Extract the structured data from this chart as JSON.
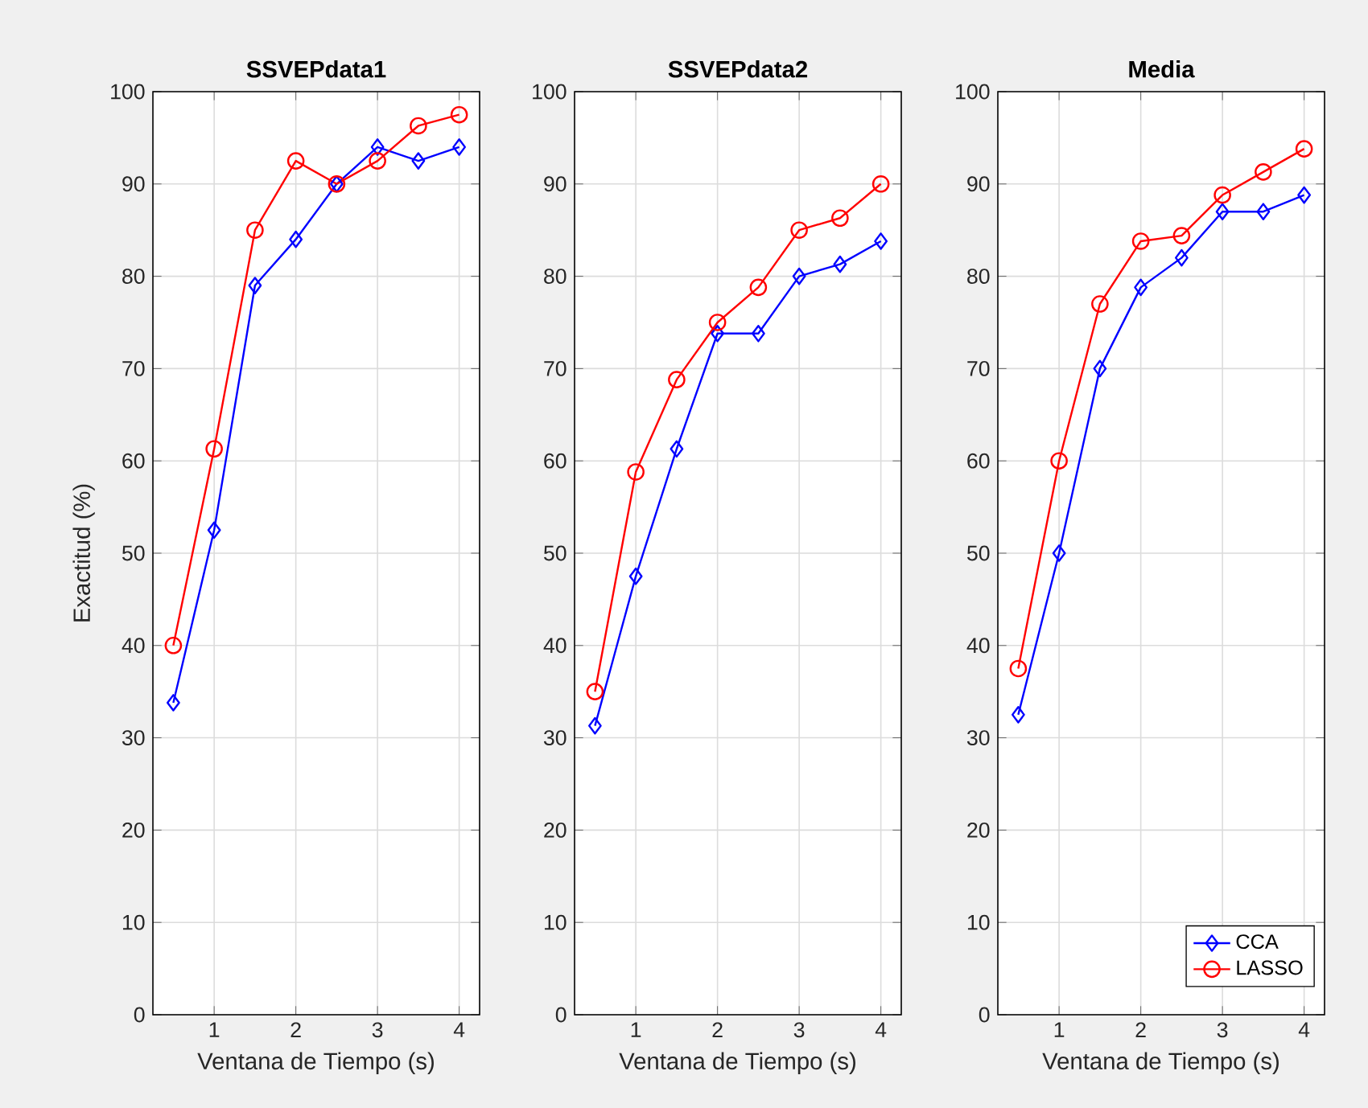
{
  "chart_data": [
    {
      "type": "line",
      "title": "SSVEPdata1",
      "xlabel": "Ventana de Tiempo (s)",
      "ylabel": "Exactitud (%)",
      "x": [
        0.5,
        1,
        1.5,
        2,
        2.5,
        3,
        3.5,
        4
      ],
      "xlim": [
        0.25,
        4.25
      ],
      "ylim": [
        0,
        100
      ],
      "xticks": [
        1,
        2,
        3,
        4
      ],
      "yticks": [
        0,
        10,
        20,
        30,
        40,
        50,
        60,
        70,
        80,
        90,
        100
      ],
      "grid": true,
      "line_style": "solid",
      "series": [
        {
          "color": "#0000ff",
          "marker": "diamond",
          "values": [
            33.8,
            52.5,
            79,
            84,
            90,
            94,
            92.5,
            94
          ]
        },
        {
          "color": "#ff0000",
          "marker": "circle",
          "values": [
            40,
            61.3,
            85,
            92.5,
            90,
            92.5,
            96.3,
            97.5
          ]
        }
      ]
    },
    {
      "type": "line",
      "title": "SSVEPdata2",
      "xlabel": "Ventana de Tiempo (s)",
      "x": [
        0.5,
        1,
        1.5,
        2,
        2.5,
        3,
        3.5,
        4
      ],
      "xlim": [
        0.25,
        4.25
      ],
      "ylim": [
        0,
        100
      ],
      "xticks": [
        1,
        2,
        3,
        4
      ],
      "yticks": [
        0,
        10,
        20,
        30,
        40,
        50,
        60,
        70,
        80,
        90,
        100
      ],
      "grid": true,
      "line_style": "solid",
      "series": [
        {
          "color": "#0000ff",
          "marker": "diamond",
          "values": [
            31.3,
            47.5,
            61.3,
            73.8,
            73.8,
            80,
            81.3,
            83.8
          ]
        },
        {
          "color": "#ff0000",
          "marker": "circle",
          "values": [
            35,
            58.8,
            68.8,
            75,
            78.8,
            85,
            86.3,
            90
          ]
        }
      ]
    },
    {
      "type": "line",
      "title": "Media",
      "xlabel": "Ventana de Tiempo (s)",
      "x": [
        0.5,
        1,
        1.5,
        2,
        2.5,
        3,
        3.5,
        4
      ],
      "xlim": [
        0.25,
        4.25
      ],
      "ylim": [
        0,
        100
      ],
      "xticks": [
        1,
        2,
        3,
        4
      ],
      "yticks": [
        0,
        10,
        20,
        30,
        40,
        50,
        60,
        70,
        80,
        90,
        100
      ],
      "grid": true,
      "line_style": "solid",
      "legend": "bottom right",
      "series": [
        {
          "name": "CCA",
          "color": "#0000ff",
          "marker": "diamond",
          "values": [
            32.5,
            50,
            70,
            78.8,
            82,
            87,
            87,
            88.8
          ]
        },
        {
          "name": "LASSO",
          "color": "#ff0000",
          "marker": "circle",
          "values": [
            37.5,
            60,
            77,
            83.8,
            84.4,
            88.8,
            91.3,
            93.8
          ]
        }
      ]
    }
  ]
}
